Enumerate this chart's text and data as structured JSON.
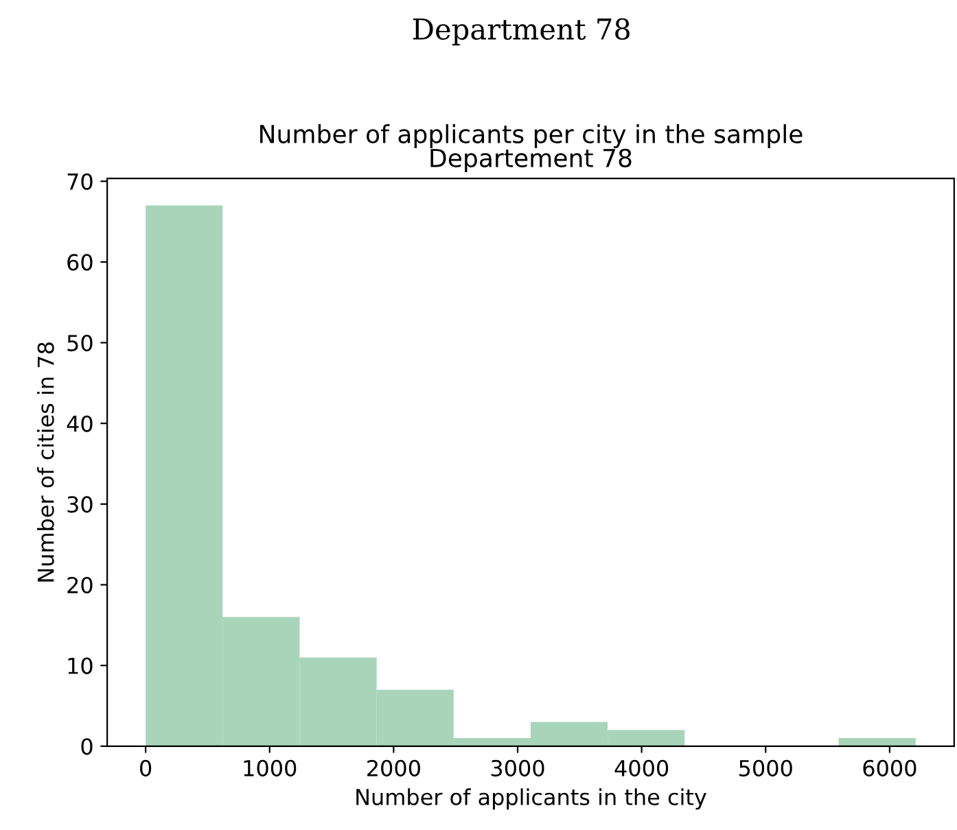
{
  "chart_data": {
    "type": "histogram",
    "title": "Department 78",
    "subtitle": "Number of applicants per city in the sample\nDepartement 78",
    "xlabel": "Number of applicants in the city",
    "ylabel": "Number of cities in 78",
    "bins": [
      0,
      621,
      1242,
      1863,
      2484,
      3105,
      3726,
      4347,
      4968,
      5589,
      6210
    ],
    "values": [
      67,
      16,
      11,
      7,
      1,
      3,
      2,
      0,
      0,
      1
    ],
    "color": "#a8d5b9",
    "xlim": [
      -310,
      6520
    ],
    "xticks": [
      0,
      1000,
      2000,
      3000,
      4000,
      5000,
      6000
    ],
    "ylim": [
      0,
      70.35
    ],
    "yticks": [
      0,
      10,
      20,
      30,
      40,
      50,
      60,
      70
    ],
    "grid": false
  }
}
